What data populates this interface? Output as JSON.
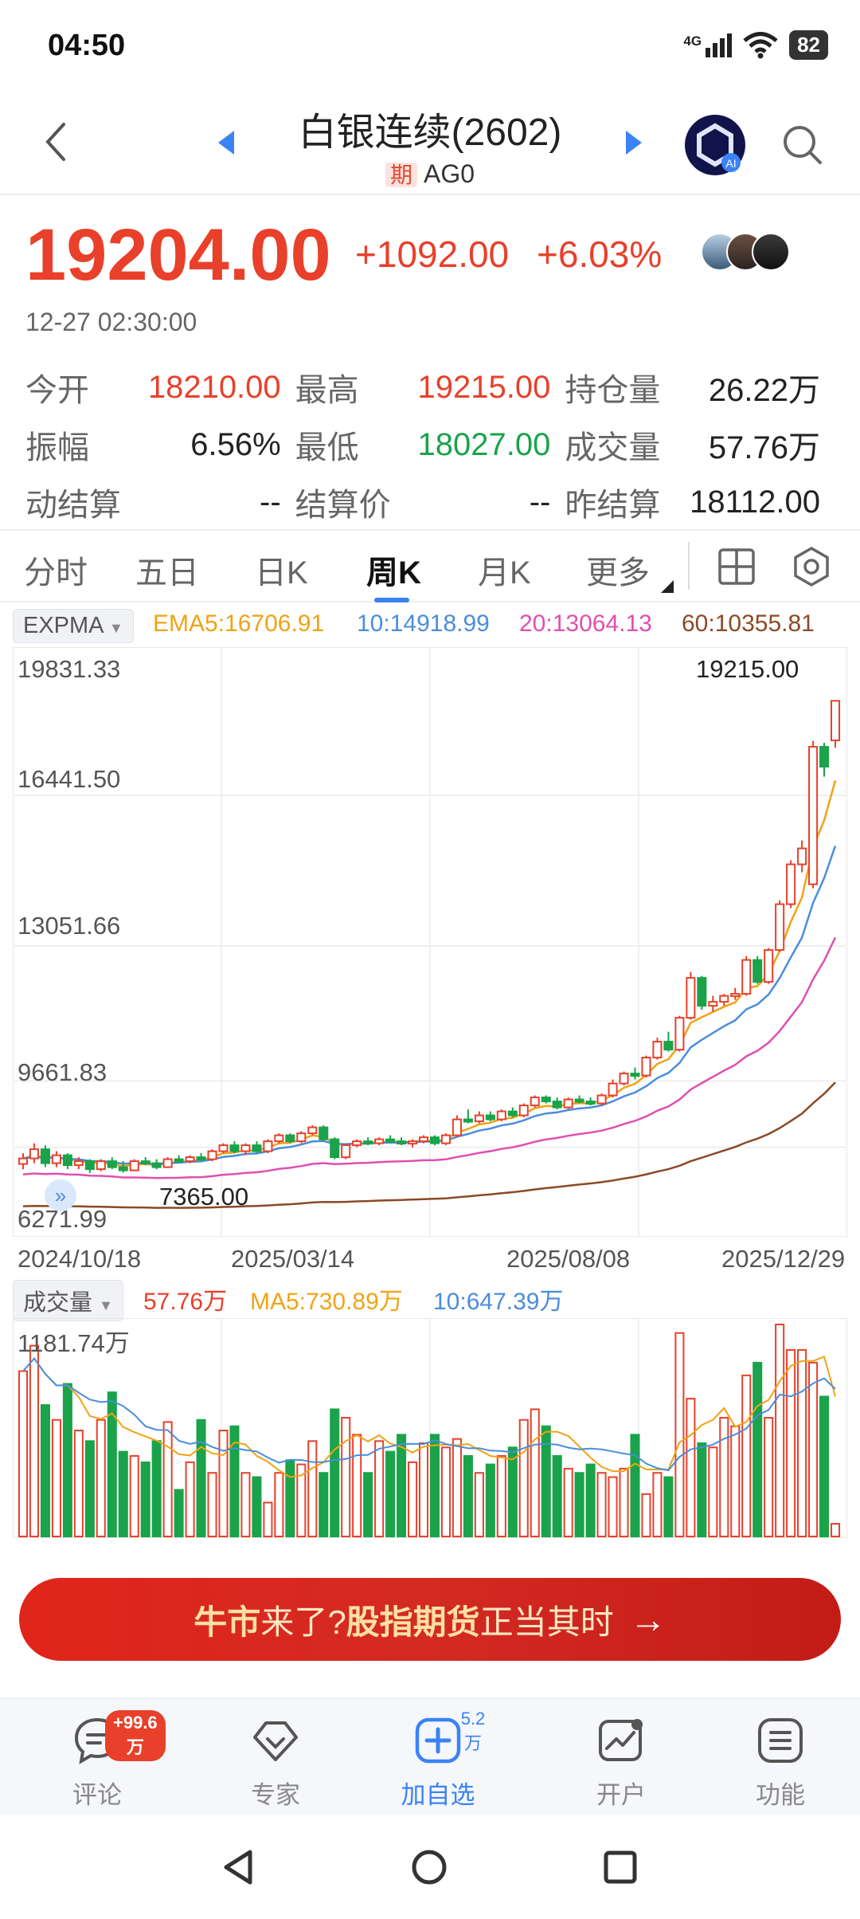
{
  "status_bar": {
    "time": "04:50",
    "network": "4G",
    "battery": "82"
  },
  "header": {
    "title": "白银连续(2602)",
    "badge": "期",
    "code": "AG0"
  },
  "quote": {
    "last_price": "19204.00",
    "change": "+1092.00",
    "change_pct": "+6.03%",
    "timestamp": "12-27 02:30:00",
    "stats": [
      [
        {
          "label": "今开",
          "value": "18210.00",
          "color": "red"
        },
        {
          "label": "最高",
          "value": "19215.00",
          "color": "red"
        },
        {
          "label": "持仓量",
          "value": "26.22万",
          "color": "dark"
        }
      ],
      [
        {
          "label": "振幅",
          "value": "6.56%",
          "color": "dark"
        },
        {
          "label": "最低",
          "value": "18027.00",
          "color": "green"
        },
        {
          "label": "成交量",
          "value": "57.76万",
          "color": "dark"
        }
      ],
      [
        {
          "label": "动结算",
          "value": "--",
          "color": "dark"
        },
        {
          "label": "结算价",
          "value": "--",
          "color": "dark"
        },
        {
          "label": "昨结算",
          "value": "18112.00",
          "color": "dark"
        }
      ]
    ]
  },
  "tabs": [
    "分时",
    "五日",
    "日K",
    "周K",
    "月K",
    "更多"
  ],
  "active_tab": "周K",
  "indicator": {
    "select": "EXPMA",
    "ema5": "EMA5:16706.91",
    "ema10": "10:14918.99",
    "ema20": "20:13064.13",
    "ema60": "60:10355.81"
  },
  "volume_indicator": {
    "select": "成交量",
    "value": "57.76万",
    "ma5": "MA5:730.89万",
    "ma10": "10:647.39万"
  },
  "colors": {
    "up": "#e8402a",
    "down": "#1aa34a",
    "ema5": "#f0a315",
    "ema10": "#4a8ddd",
    "ema20": "#e04fb0",
    "ema60": "#8a4a26",
    "accent": "#3b82f6"
  },
  "chart_data": {
    "type": "candlestick",
    "y_ticks": [
      "19831.33",
      "16441.50",
      "13051.66",
      "9661.83",
      "6271.99"
    ],
    "x_ticks": [
      "2024/10/18",
      "2025/03/14",
      "2025/08/08",
      "2025/12/29"
    ],
    "ylim": [
      6271.99,
      19831.33
    ],
    "high_annotation": "19215.00",
    "low_annotation": "7365.00",
    "candles_ohlc_approx": [
      [
        7580,
        7850,
        7450,
        7720
      ],
      [
        7720,
        8100,
        7600,
        7950
      ],
      [
        7950,
        8050,
        7500,
        7600
      ],
      [
        7600,
        7900,
        7500,
        7800
      ],
      [
        7800,
        7850,
        7450,
        7550
      ],
      [
        7550,
        7750,
        7450,
        7650
      ],
      [
        7650,
        7700,
        7350,
        7450
      ],
      [
        7450,
        7700,
        7400,
        7650
      ],
      [
        7650,
        7750,
        7450,
        7500
      ],
      [
        7500,
        7650,
        7365,
        7420
      ],
      [
        7420,
        7700,
        7400,
        7650
      ],
      [
        7650,
        7750,
        7550,
        7600
      ],
      [
        7600,
        7700,
        7450,
        7500
      ],
      [
        7500,
        7750,
        7480,
        7700
      ],
      [
        7700,
        7800,
        7600,
        7650
      ],
      [
        7650,
        7800,
        7600,
        7750
      ],
      [
        7750,
        7850,
        7650,
        7700
      ],
      [
        7700,
        7950,
        7650,
        7900
      ],
      [
        7900,
        8100,
        7850,
        8050
      ],
      [
        8050,
        8150,
        7850,
        7900
      ],
      [
        7900,
        8100,
        7800,
        8050
      ],
      [
        8050,
        8150,
        7850,
        7900
      ],
      [
        7900,
        8200,
        7850,
        8150
      ],
      [
        8150,
        8350,
        8100,
        8300
      ],
      [
        8300,
        8350,
        8100,
        8150
      ],
      [
        8150,
        8400,
        8100,
        8350
      ],
      [
        8350,
        8550,
        8300,
        8500
      ],
      [
        8500,
        8550,
        8150,
        8200
      ],
      [
        8200,
        8250,
        7700,
        7750
      ],
      [
        7750,
        8100,
        7700,
        8050
      ],
      [
        8050,
        8200,
        8000,
        8150
      ],
      [
        8150,
        8250,
        8050,
        8100
      ],
      [
        8100,
        8250,
        8050,
        8200
      ],
      [
        8200,
        8300,
        8100,
        8150
      ],
      [
        8150,
        8250,
        8050,
        8100
      ],
      [
        8100,
        8200,
        8000,
        8150
      ],
      [
        8150,
        8300,
        8100,
        8250
      ],
      [
        8250,
        8300,
        8050,
        8100
      ],
      [
        8100,
        8350,
        8050,
        8300
      ],
      [
        8300,
        8800,
        8250,
        8700
      ],
      [
        8700,
        8950,
        8600,
        8650
      ],
      [
        8650,
        8900,
        8600,
        8800
      ],
      [
        8800,
        8900,
        8650,
        8700
      ],
      [
        8700,
        8950,
        8650,
        8900
      ],
      [
        8900,
        9000,
        8750,
        8800
      ],
      [
        8800,
        9100,
        8750,
        9050
      ],
      [
        9050,
        9300,
        9000,
        9250
      ],
      [
        9250,
        9300,
        9100,
        9150
      ],
      [
        9150,
        9250,
        8950,
        9000
      ],
      [
        9000,
        9250,
        8950,
        9200
      ],
      [
        9200,
        9300,
        9100,
        9150
      ],
      [
        9150,
        9250,
        9050,
        9100
      ],
      [
        9100,
        9350,
        9050,
        9300
      ],
      [
        9300,
        9700,
        9250,
        9600
      ],
      [
        9600,
        9900,
        9550,
        9850
      ],
      [
        9850,
        10000,
        9700,
        9800
      ],
      [
        9800,
        10300,
        9750,
        10250
      ],
      [
        10250,
        10750,
        10200,
        10650
      ],
      [
        10650,
        10900,
        10400,
        10450
      ],
      [
        10450,
        11300,
        10400,
        11250
      ],
      [
        11250,
        12400,
        11200,
        12250
      ],
      [
        12250,
        12300,
        11450,
        11550
      ],
      [
        11550,
        11800,
        11400,
        11650
      ],
      [
        11650,
        11850,
        11550,
        11800
      ],
      [
        11800,
        12000,
        11700,
        11850
      ],
      [
        11850,
        12800,
        11800,
        12700
      ],
      [
        12700,
        12800,
        12100,
        12150
      ],
      [
        12150,
        13000,
        12100,
        12950
      ],
      [
        12950,
        14200,
        12900,
        14100
      ],
      [
        14100,
        15200,
        14000,
        15100
      ],
      [
        15100,
        15700,
        14900,
        15500
      ],
      [
        14600,
        18200,
        14500,
        18050
      ],
      [
        18050,
        18150,
        17300,
        17550
      ],
      [
        18210,
        19215,
        18027,
        19204
      ]
    ],
    "volume_ylim_label": "1181.74万"
  },
  "banner": {
    "part1": "牛市",
    "part2": "来了?",
    "part3": "股指期货",
    "part4": "正当其时",
    "arrow": "→"
  },
  "bottom_nav": [
    {
      "label": "评论",
      "badge": "+99.6万"
    },
    {
      "label": "专家",
      "badge": ""
    },
    {
      "label": "加自选",
      "badge": "5.2万"
    },
    {
      "label": "开户",
      "badge": ""
    },
    {
      "label": "功能",
      "badge": ""
    }
  ]
}
